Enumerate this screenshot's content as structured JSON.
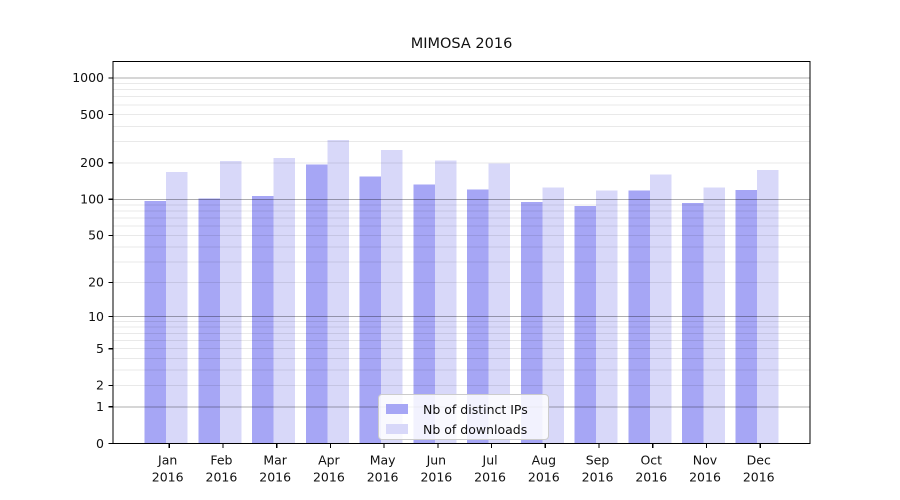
{
  "figure": {
    "background": "#ffffff"
  },
  "chart_data": {
    "type": "bar",
    "title": "MIMOSA 2016",
    "xlabel": "",
    "ylabel": "",
    "yscale": "log1p",
    "ylim": [
      0,
      1363
    ],
    "categories": [
      "Jan",
      "Feb",
      "Mar",
      "Apr",
      "May",
      "Jun",
      "Jul",
      "Aug",
      "Sep",
      "Oct",
      "Nov",
      "Dec"
    ],
    "x_year_suffix": "2016",
    "series": [
      {
        "name": "Nb of distinct IPs",
        "color": "#a6a6f5",
        "values": [
          97,
          101,
          106,
          194,
          154,
          133,
          121,
          95,
          88,
          118,
          93,
          119
        ]
      },
      {
        "name": "Nb of downloads",
        "color": "#d8d8f9",
        "values": [
          168,
          207,
          220,
          308,
          255,
          210,
          197,
          125,
          118,
          161,
          125,
          174
        ]
      }
    ],
    "ytick_labels": [
      "1000",
      "500",
      "200",
      "100",
      "50",
      "20",
      "10",
      "5",
      "2",
      "1",
      "0"
    ],
    "grid_major": [
      1,
      10,
      100,
      1000
    ],
    "grid_minor": [
      2,
      3,
      4,
      5,
      6,
      7,
      8,
      9,
      20,
      30,
      40,
      50,
      60,
      70,
      80,
      90,
      200,
      300,
      400,
      500,
      600,
      700,
      800,
      900
    ],
    "legend": {
      "position": "lower-center-inside",
      "items": [
        "Nb of distinct IPs",
        "Nb of downloads"
      ]
    }
  },
  "colors": {
    "axis": "#000000",
    "text": "#111111",
    "grid_major": "rgba(0,0,0,0.32)",
    "grid_minor": "rgba(0,0,0,0.085)",
    "legend_border": "#cccccc"
  }
}
